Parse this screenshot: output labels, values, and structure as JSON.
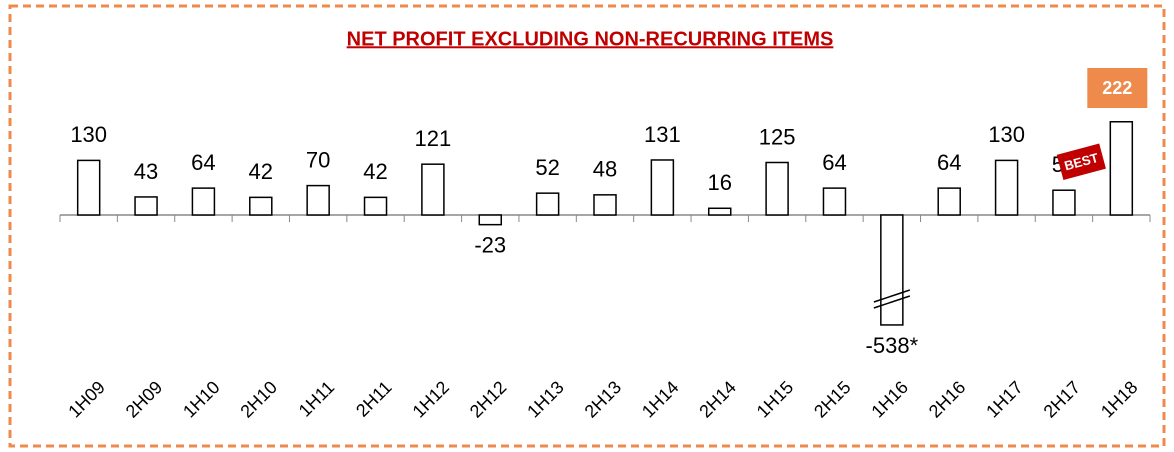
{
  "chart_data": {
    "type": "bar",
    "title": "NET PROFIT EXCLUDING NON-RECURRING ITEMS",
    "categories": [
      "1H09",
      "2H09",
      "1H10",
      "2H10",
      "1H11",
      "2H11",
      "1H12",
      "2H12",
      "1H13",
      "2H13",
      "1H14",
      "2H14",
      "1H15",
      "2H15",
      "1H16",
      "2H16",
      "1H17",
      "2H17",
      "1H18"
    ],
    "values": [
      130,
      43,
      64,
      42,
      70,
      42,
      121,
      -23,
      52,
      48,
      131,
      16,
      125,
      64,
      -538,
      64,
      130,
      59,
      222
    ],
    "value_labels": [
      "130",
      "43",
      "64",
      "42",
      "70",
      "42",
      "121",
      "-23",
      "52",
      "48",
      "131",
      "16",
      "125",
      "64",
      "-538*",
      "64",
      "130",
      "59",
      "222"
    ],
    "color": "#ffffff",
    "edge_color": "#000000",
    "annotation": {
      "text": "BEST",
      "category": "1H18",
      "color": "#c00000",
      "box_color": "#ed8a4c"
    }
  }
}
